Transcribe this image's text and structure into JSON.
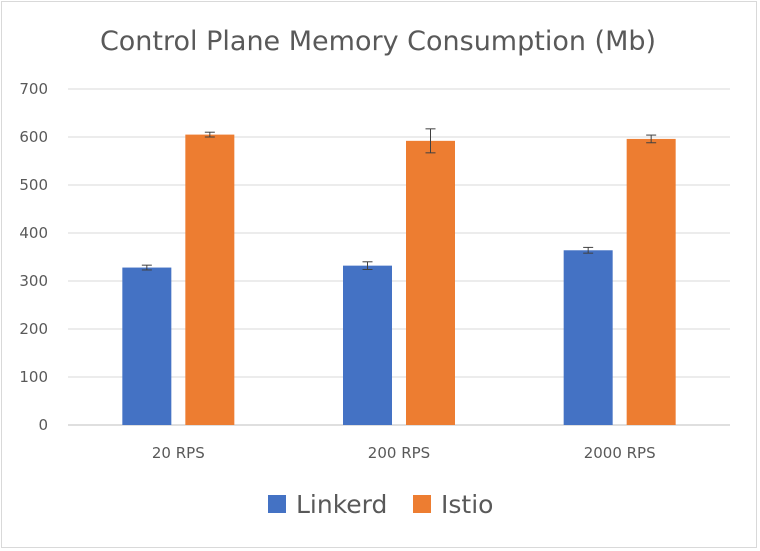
{
  "chart_data": {
    "type": "bar",
    "title": "Control Plane Memory Consumption (Mb)",
    "xlabel": "",
    "ylabel": "",
    "categories": [
      "20 RPS",
      "200 RPS",
      "2000 RPS"
    ],
    "ylim": [
      0,
      700
    ],
    "yticks": [
      0,
      100,
      200,
      300,
      400,
      500,
      600,
      700
    ],
    "grid": true,
    "legend_position": "bottom",
    "series": [
      {
        "name": "Linkerd",
        "color": "#4472c4",
        "values": [
          328,
          332,
          364
        ],
        "error": [
          5,
          8,
          6
        ]
      },
      {
        "name": "Istio",
        "color": "#ed7d31",
        "values": [
          605,
          592,
          596
        ],
        "error": [
          5,
          25,
          8
        ]
      }
    ]
  }
}
